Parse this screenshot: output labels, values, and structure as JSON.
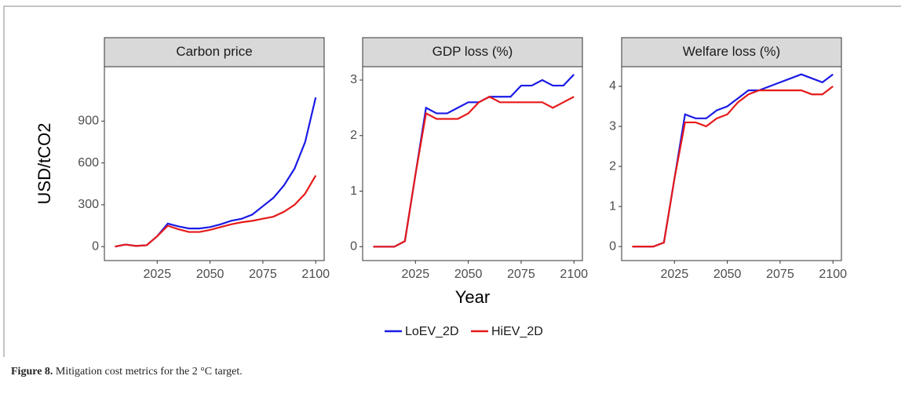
{
  "chart_data": [
    {
      "type": "line",
      "title": "Carbon price",
      "y_label": "USD/tCO2",
      "x": [
        2005,
        2010,
        2015,
        2020,
        2025,
        2030,
        2035,
        2040,
        2045,
        2050,
        2055,
        2060,
        2065,
        2070,
        2075,
        2080,
        2085,
        2090,
        2095,
        2100
      ],
      "xlim": [
        2000,
        2104
      ],
      "xticks": [
        2025,
        2050,
        2075,
        2100
      ],
      "ylim": [
        -100,
        1290
      ],
      "yticks": [
        0,
        300,
        600,
        900
      ],
      "series": [
        {
          "name": "LoEV_2D",
          "color": "#1a1ae6",
          "values": [
            0,
            15,
            5,
            10,
            75,
            165,
            145,
            130,
            130,
            140,
            160,
            185,
            200,
            230,
            290,
            350,
            440,
            560,
            750,
            1070
          ]
        },
        {
          "name": "HiEV_2D",
          "color": "#e61a1a",
          "values": [
            0,
            15,
            5,
            10,
            75,
            150,
            125,
            105,
            105,
            120,
            140,
            160,
            175,
            185,
            200,
            215,
            250,
            300,
            380,
            510
          ]
        }
      ]
    },
    {
      "type": "line",
      "title": "GDP loss (%)",
      "x_label": "Year",
      "x": [
        2005,
        2010,
        2015,
        2020,
        2025,
        2030,
        2035,
        2040,
        2045,
        2050,
        2055,
        2060,
        2065,
        2070,
        2075,
        2080,
        2085,
        2090,
        2095,
        2100
      ],
      "xlim": [
        2000,
        2104
      ],
      "xticks": [
        2025,
        2050,
        2075,
        2100
      ],
      "ylim": [
        -0.25,
        3.24
      ],
      "yticks": [
        0,
        1,
        2,
        3
      ],
      "series": [
        {
          "name": "LoEV_2D",
          "color": "#1a1ae6",
          "values": [
            0,
            0,
            0,
            0.1,
            1.3,
            2.5,
            2.4,
            2.4,
            2.5,
            2.6,
            2.6,
            2.7,
            2.7,
            2.7,
            2.9,
            2.9,
            3.0,
            2.9,
            2.9,
            3.1
          ]
        },
        {
          "name": "HiEV_2D",
          "color": "#e61a1a",
          "values": [
            0,
            0,
            0,
            0.1,
            1.3,
            2.4,
            2.3,
            2.3,
            2.3,
            2.4,
            2.6,
            2.7,
            2.6,
            2.6,
            2.6,
            2.6,
            2.6,
            2.5,
            2.6,
            2.7
          ]
        }
      ]
    },
    {
      "type": "line",
      "title": "Welfare loss (%)",
      "x": [
        2005,
        2010,
        2015,
        2020,
        2025,
        2030,
        2035,
        2040,
        2045,
        2050,
        2055,
        2060,
        2065,
        2070,
        2075,
        2080,
        2085,
        2090,
        2095,
        2100
      ],
      "xlim": [
        2000,
        2104
      ],
      "xticks": [
        2025,
        2050,
        2075,
        2100
      ],
      "ylim": [
        -0.35,
        4.49
      ],
      "yticks": [
        0,
        1,
        2,
        3,
        4
      ],
      "series": [
        {
          "name": "LoEV_2D",
          "color": "#1a1ae6",
          "values": [
            0,
            0,
            0,
            0.1,
            1.7,
            3.3,
            3.2,
            3.2,
            3.4,
            3.5,
            3.7,
            3.9,
            3.9,
            4.0,
            4.1,
            4.2,
            4.3,
            4.2,
            4.1,
            4.3
          ]
        },
        {
          "name": "HiEV_2D",
          "color": "#e61a1a",
          "values": [
            0,
            0,
            0,
            0.1,
            1.7,
            3.1,
            3.1,
            3.0,
            3.2,
            3.3,
            3.6,
            3.8,
            3.9,
            3.9,
            3.9,
            3.9,
            3.9,
            3.8,
            3.8,
            4.0
          ]
        }
      ]
    }
  ],
  "caption": {
    "label": "Figure 8.",
    "text": "Mitigation cost metrics for the 2 °C target."
  }
}
